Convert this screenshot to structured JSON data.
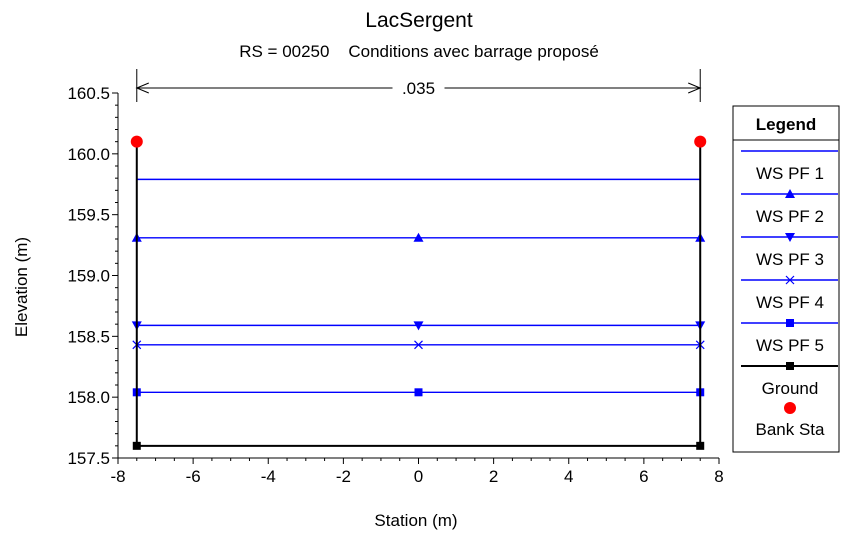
{
  "chart_data": {
    "type": "line",
    "title": "LacSergent",
    "subtitle": "RS = 00250    Conditions avec barrage proposé",
    "xlabel": "Station (m)",
    "ylabel": "Elevation (m)",
    "xlim": [
      -8,
      8
    ],
    "ylim": [
      157.5,
      160.5
    ],
    "x_ticks": [
      "-8",
      "-6",
      "-4",
      "-2",
      "0",
      "2",
      "4",
      "6",
      "8"
    ],
    "y_ticks": [
      "157.5",
      "158.0",
      "158.5",
      "159.0",
      "159.5",
      "160.0",
      "160.5"
    ],
    "grid": false,
    "annotation": {
      "text": ".035",
      "x_start": -7.5,
      "x_end": 7.5
    },
    "legend": {
      "title": "Legend",
      "placement": "right"
    },
    "series": [
      {
        "name": "WS PF 1",
        "color": "#0000ff",
        "marker": "none",
        "x": [
          -7.5,
          7.5
        ],
        "y": [
          159.79,
          159.79
        ]
      },
      {
        "name": "WS PF 2",
        "color": "#0000ff",
        "marker": "triangle-up",
        "x": [
          -7.5,
          0,
          7.5
        ],
        "y": [
          159.31,
          159.31,
          159.31
        ]
      },
      {
        "name": "WS PF 3",
        "color": "#0000ff",
        "marker": "triangle-down",
        "x": [
          -7.5,
          0,
          7.5
        ],
        "y": [
          158.59,
          158.59,
          158.59
        ]
      },
      {
        "name": "WS PF 4",
        "color": "#0000ff",
        "marker": "x",
        "x": [
          -7.5,
          0,
          7.5
        ],
        "y": [
          158.43,
          158.43,
          158.43
        ]
      },
      {
        "name": "WS PF 5",
        "color": "#0000ff",
        "marker": "square",
        "x": [
          -7.5,
          0,
          7.5
        ],
        "y": [
          158.04,
          158.04,
          158.04
        ]
      },
      {
        "name": "Ground",
        "color": "#000000",
        "marker": "square",
        "x": [
          -7.5,
          -7.5,
          7.5,
          7.5
        ],
        "y": [
          160.1,
          157.6,
          157.6,
          160.1
        ]
      },
      {
        "name": "Bank Sta",
        "color": "#ff0000",
        "marker": "circle",
        "x": [
          -7.5,
          7.5
        ],
        "y": [
          160.1,
          160.1
        ]
      }
    ]
  }
}
